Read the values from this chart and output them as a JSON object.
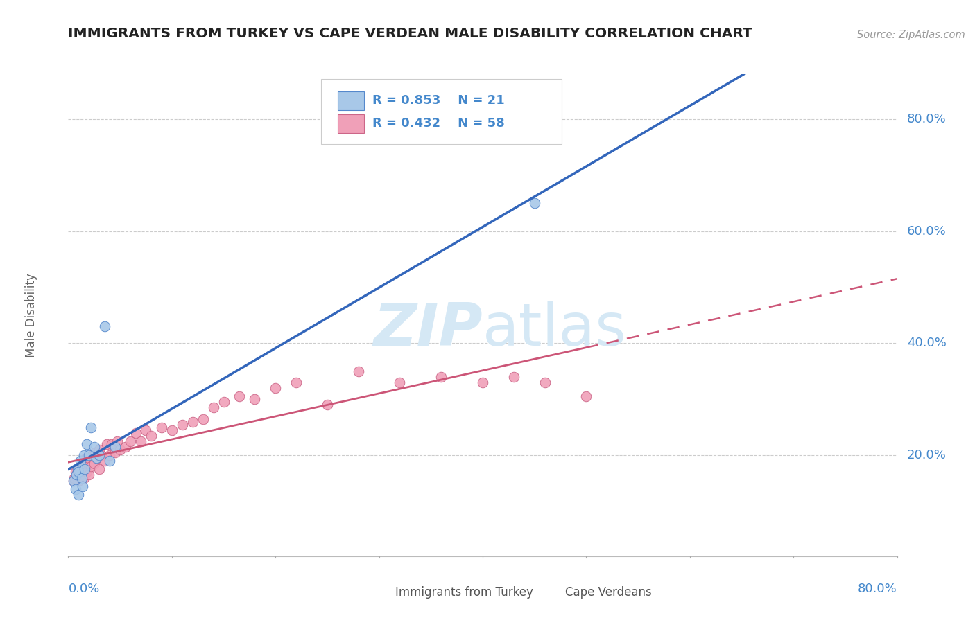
{
  "title": "IMMIGRANTS FROM TURKEY VS CAPE VERDEAN MALE DISABILITY CORRELATION CHART",
  "source": "Source: ZipAtlas.com",
  "ylabel": "Male Disability",
  "ytick_vals": [
    0.2,
    0.4,
    0.6,
    0.8
  ],
  "ytick_labels": [
    "20.0%",
    "40.0%",
    "60.0%",
    "80.0%"
  ],
  "xlim": [
    0.0,
    0.8
  ],
  "ylim": [
    0.02,
    0.88
  ],
  "legend1_r": "0.853",
  "legend1_n": "21",
  "legend2_r": "0.432",
  "legend2_n": "58",
  "blue_scatter_color": "#a8c8e8",
  "blue_scatter_edge": "#5588cc",
  "pink_scatter_color": "#f0a0b8",
  "pink_scatter_edge": "#cc6688",
  "blue_line_color": "#3366bb",
  "pink_line_color": "#cc5577",
  "watermark_color": "#d5e8f5",
  "grid_color": "#cccccc",
  "axis_label_color": "#4488cc",
  "turkey_x": [
    0.005,
    0.007,
    0.008,
    0.009,
    0.01,
    0.01,
    0.012,
    0.013,
    0.014,
    0.015,
    0.016,
    0.018,
    0.02,
    0.022,
    0.025,
    0.027,
    0.03,
    0.035,
    0.04,
    0.045,
    0.45
  ],
  "turkey_y": [
    0.155,
    0.14,
    0.165,
    0.175,
    0.13,
    0.17,
    0.19,
    0.16,
    0.145,
    0.2,
    0.175,
    0.22,
    0.2,
    0.25,
    0.215,
    0.195,
    0.2,
    0.43,
    0.19,
    0.215,
    0.65
  ],
  "capeverde_x": [
    0.005,
    0.006,
    0.007,
    0.008,
    0.009,
    0.01,
    0.01,
    0.011,
    0.012,
    0.013,
    0.014,
    0.015,
    0.016,
    0.017,
    0.018,
    0.019,
    0.02,
    0.02,
    0.022,
    0.023,
    0.025,
    0.026,
    0.028,
    0.03,
    0.03,
    0.032,
    0.035,
    0.037,
    0.04,
    0.042,
    0.045,
    0.047,
    0.05,
    0.055,
    0.06,
    0.065,
    0.07,
    0.075,
    0.08,
    0.09,
    0.1,
    0.11,
    0.12,
    0.13,
    0.14,
    0.15,
    0.165,
    0.18,
    0.2,
    0.22,
    0.25,
    0.28,
    0.32,
    0.36,
    0.4,
    0.43,
    0.46,
    0.5
  ],
  "capeverde_y": [
    0.155,
    0.16,
    0.17,
    0.165,
    0.175,
    0.155,
    0.175,
    0.165,
    0.18,
    0.17,
    0.185,
    0.16,
    0.18,
    0.195,
    0.17,
    0.185,
    0.165,
    0.195,
    0.18,
    0.2,
    0.185,
    0.205,
    0.195,
    0.175,
    0.21,
    0.2,
    0.19,
    0.22,
    0.2,
    0.22,
    0.205,
    0.225,
    0.21,
    0.215,
    0.225,
    0.24,
    0.225,
    0.245,
    0.235,
    0.25,
    0.245,
    0.255,
    0.26,
    0.265,
    0.285,
    0.295,
    0.305,
    0.3,
    0.32,
    0.33,
    0.29,
    0.35,
    0.33,
    0.34,
    0.33,
    0.34,
    0.33,
    0.305
  ]
}
